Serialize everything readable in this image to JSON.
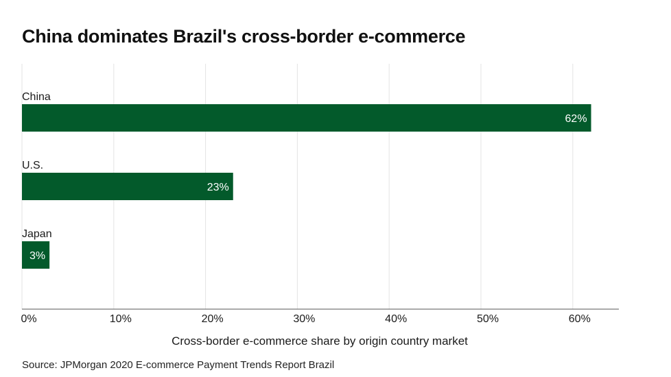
{
  "title": "China dominates Brazil's cross-border e-commerce",
  "source": "Source: JPMorgan 2020 E-commerce Payment Trends Report Brazil",
  "colors": {
    "bar": "#035a2b",
    "grid": "#e3e3e3",
    "axis": "#555555",
    "label_inside": "#ffffff"
  },
  "chart_data": {
    "type": "bar",
    "orientation": "horizontal",
    "categories": [
      "China",
      "U.S.",
      "Japan"
    ],
    "values": [
      62,
      23,
      3
    ],
    "value_labels": [
      "62%",
      "23%",
      "3%"
    ],
    "xlabel": "Cross-border e-commerce share by origin country market",
    "ylabel": "",
    "xlim": [
      0,
      65
    ],
    "x_ticks": [
      0,
      10,
      20,
      30,
      40,
      50,
      60
    ],
    "x_tick_labels": [
      "0%",
      "10%",
      "20%",
      "30%",
      "40%",
      "50%",
      "60%"
    ],
    "grid": true,
    "legend": "none"
  }
}
